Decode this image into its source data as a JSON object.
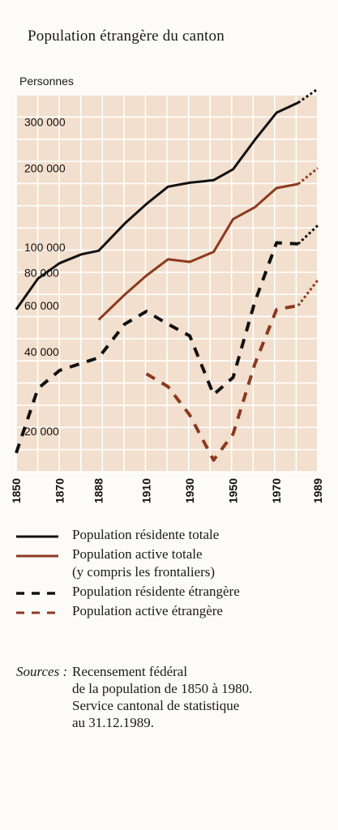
{
  "chart_data": {
    "type": "line",
    "title": "Population étrangère du canton",
    "ylabel": "Personnes",
    "y_scale": "log",
    "ylim": [
      14000,
      380000
    ],
    "xlim": [
      1850,
      1989
    ],
    "x_ticks": [
      "1850",
      "1870",
      "1888",
      "1910",
      "1930",
      "1950",
      "1970",
      "1989"
    ],
    "y_ticks": [
      {
        "value": 300000,
        "label": "300 000"
      },
      {
        "value": 200000,
        "label": "200 000"
      },
      {
        "value": 100000,
        "label": "100 000"
      },
      {
        "value": 80000,
        "label": "80 000"
      },
      {
        "value": 60000,
        "label": "60 000"
      },
      {
        "value": 40000,
        "label": "40 000"
      },
      {
        "value": 20000,
        "label": "20 000"
      }
    ],
    "grid": true,
    "series": [
      {
        "name": "Population résidente totale",
        "color": "#111111",
        "dash": "solid",
        "points": [
          [
            1850,
            58000
          ],
          [
            1860,
            76000
          ],
          [
            1870,
            87000
          ],
          [
            1880,
            94000
          ],
          [
            1888,
            97000
          ],
          [
            1900,
            123000
          ],
          [
            1910,
            146000
          ],
          [
            1920,
            170000
          ],
          [
            1930,
            176000
          ],
          [
            1941,
            180000
          ],
          [
            1950,
            198000
          ],
          [
            1960,
            256000
          ],
          [
            1970,
            325000
          ],
          [
            1980,
            355000
          ]
        ],
        "projection": [
          [
            1980,
            355000
          ],
          [
            1989,
            400000
          ]
        ]
      },
      {
        "name": "Population active totale",
        "sub_label": "(y compris les frontaliers)",
        "color": "#8b3a1f",
        "dash": "solid",
        "points": [
          [
            1888,
            53000
          ],
          [
            1900,
            66000
          ],
          [
            1910,
            78000
          ],
          [
            1920,
            90000
          ],
          [
            1930,
            88000
          ],
          [
            1941,
            96000
          ],
          [
            1950,
            128000
          ],
          [
            1960,
            142000
          ],
          [
            1970,
            168000
          ],
          [
            1980,
            174000
          ]
        ],
        "projection": [
          [
            1980,
            174000
          ],
          [
            1989,
            200000
          ]
        ]
      },
      {
        "name": "Population résidente étrangère",
        "color": "#111111",
        "dash": "dashed",
        "points": [
          [
            1850,
            16500
          ],
          [
            1860,
            29000
          ],
          [
            1870,
            34000
          ],
          [
            1888,
            38000
          ],
          [
            1900,
            51000
          ],
          [
            1910,
            57000
          ],
          [
            1920,
            51000
          ],
          [
            1930,
            46000
          ],
          [
            1941,
            27500
          ],
          [
            1950,
            32000
          ],
          [
            1960,
            62000
          ],
          [
            1970,
            104000
          ],
          [
            1980,
            103000
          ]
        ],
        "projection": [
          [
            1980,
            103000
          ],
          [
            1989,
            121000
          ]
        ]
      },
      {
        "name": "Population active étrangère",
        "color": "#8b3a1f",
        "dash": "dashed",
        "points": [
          [
            1910,
            33000
          ],
          [
            1920,
            29500
          ],
          [
            1930,
            23000
          ],
          [
            1941,
            15500
          ],
          [
            1950,
            19500
          ],
          [
            1960,
            36000
          ],
          [
            1970,
            58000
          ],
          [
            1980,
            60000
          ]
        ],
        "projection": [
          [
            1980,
            60000
          ],
          [
            1989,
            75000
          ]
        ]
      }
    ]
  },
  "sources": {
    "label": "Sources :",
    "line1": "Recensement fédéral",
    "line2": "de la population de 1850 à 1980.",
    "line3": "Service cantonal de statistique",
    "line4": "au 31.12.1989."
  }
}
